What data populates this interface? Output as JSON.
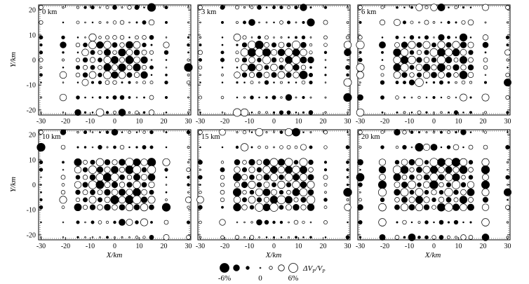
{
  "chart_data": {
    "type": "scatter",
    "description_free": true,
    "x_label": "X/km",
    "y_label": "Y/km",
    "xlim": [
      -31,
      31
    ],
    "ylim": [
      -22,
      22
    ],
    "x_ticks": [
      "-30",
      "-20",
      "-10",
      "0",
      "10",
      "20",
      "30"
    ],
    "y_ticks": [
      "20",
      "10",
      "0",
      "-10",
      "-20"
    ],
    "x_tick_values": [
      -30,
      -20,
      -10,
      0,
      10,
      20,
      30
    ],
    "y_tick_values": [
      20,
      10,
      0,
      -10,
      -20
    ],
    "panels": [
      {
        "depth_label": "0 km"
      },
      {
        "depth_label": "3 km"
      },
      {
        "depth_label": "6 km"
      },
      {
        "depth_label": "10 km"
      },
      {
        "depth_label": "15 km"
      },
      {
        "depth_label": "20 km"
      }
    ],
    "legend": {
      "labels": [
        "-6%",
        "0",
        "6%"
      ],
      "quantity": "ΔV",
      "quantity_sub": "P",
      "slash": "/",
      "quantity2": "V",
      "quantity2_sub": "P",
      "symbol_values_percent": [
        -6,
        -4,
        -2,
        0,
        2,
        4,
        6
      ]
    },
    "grid_x": [
      -30,
      -21,
      -15,
      -12,
      -9,
      -6,
      -3,
      0,
      3,
      6,
      9,
      12,
      15,
      21,
      30
    ],
    "grid_y": [
      21,
      15,
      9,
      6,
      3,
      0,
      -3,
      -6,
      -9,
      -15,
      -21
    ],
    "symbol_rule": "solid circle = negative anomaly, open circle = positive anomaly, size proportional to magnitude"
  },
  "colors": {
    "fill": "#000000",
    "stroke": "#000000",
    "background": "#ffffff"
  }
}
